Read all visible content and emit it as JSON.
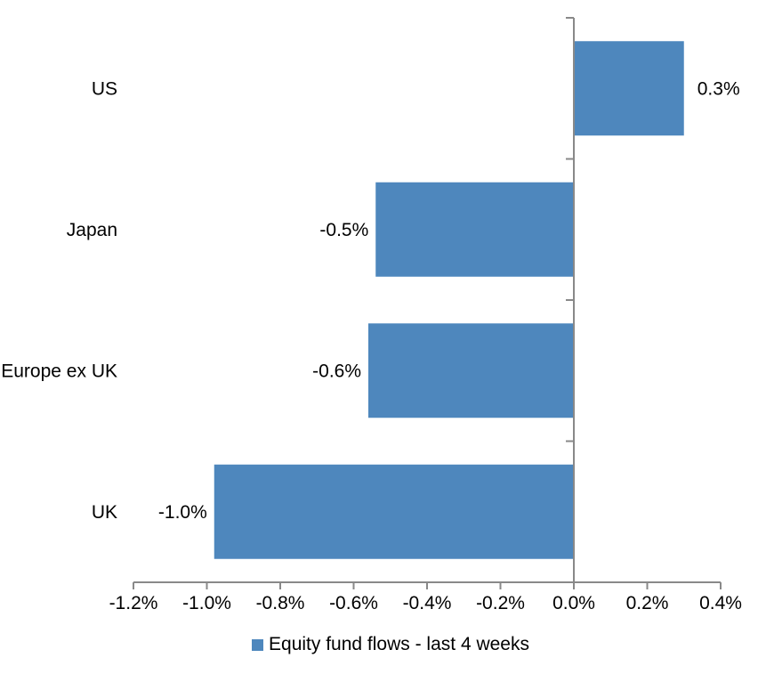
{
  "chart_data": {
    "type": "bar",
    "orientation": "horizontal",
    "title": "",
    "xlabel": "",
    "ylabel": "",
    "categories": [
      "US",
      "Japan",
      "Europe ex UK",
      "UK"
    ],
    "values": [
      0.3,
      -0.5,
      -0.6,
      -1.0
    ],
    "value_labels": [
      "0.3%",
      "-0.5%",
      "-0.6%",
      "-1.0%"
    ],
    "values_precise_pct": [
      0.3,
      -0.54,
      -0.56,
      -0.98
    ],
    "unit": "%",
    "xlim": [
      -1.2,
      0.4
    ],
    "x_tick_step": 0.2,
    "x_tick_labels": [
      "-1.2%",
      "-1.0%",
      "-0.8%",
      "-0.6%",
      "-0.4%",
      "-0.2%",
      "0.0%",
      "0.2%",
      "0.4%"
    ],
    "grid": false,
    "legend": {
      "position": "bottom",
      "entries": [
        {
          "label": "Equity fund flows - last 4 weeks",
          "swatch_color": "#4E87BD"
        }
      ]
    },
    "colors": {
      "bar": "#4E87BD",
      "axis": "#898989",
      "text": "#000000",
      "background": "#FFFFFF"
    }
  }
}
